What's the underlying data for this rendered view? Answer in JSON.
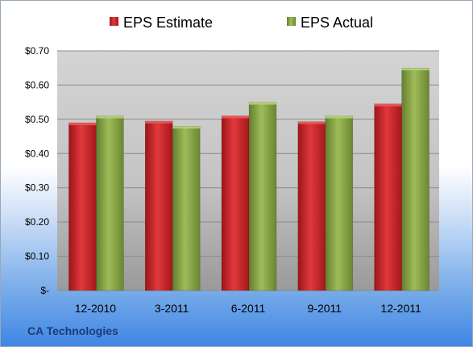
{
  "footer_label": "CA Technologies",
  "chart_data": {
    "type": "bar",
    "categories": [
      "12-2010",
      "3-2011",
      "6-2011",
      "9-2011",
      "12-2011"
    ],
    "series": [
      {
        "name": "EPS Estimate",
        "color": "#cc1f24",
        "values": [
          0.49,
          0.495,
          0.51,
          0.493,
          0.545
        ]
      },
      {
        "name": "EPS Actual",
        "color": "#86a444",
        "values": [
          0.51,
          0.48,
          0.55,
          0.51,
          0.65
        ]
      }
    ],
    "ylim": [
      0,
      0.7
    ],
    "yticks": [
      0,
      0.1,
      0.2,
      0.3,
      0.4,
      0.5,
      0.6,
      0.7
    ],
    "ytick_labels": [
      "$-",
      "$0.10",
      "$0.20",
      "$0.30",
      "$0.40",
      "$0.50",
      "$0.60",
      "$0.70"
    ],
    "grid": true,
    "legend_position": "top"
  }
}
